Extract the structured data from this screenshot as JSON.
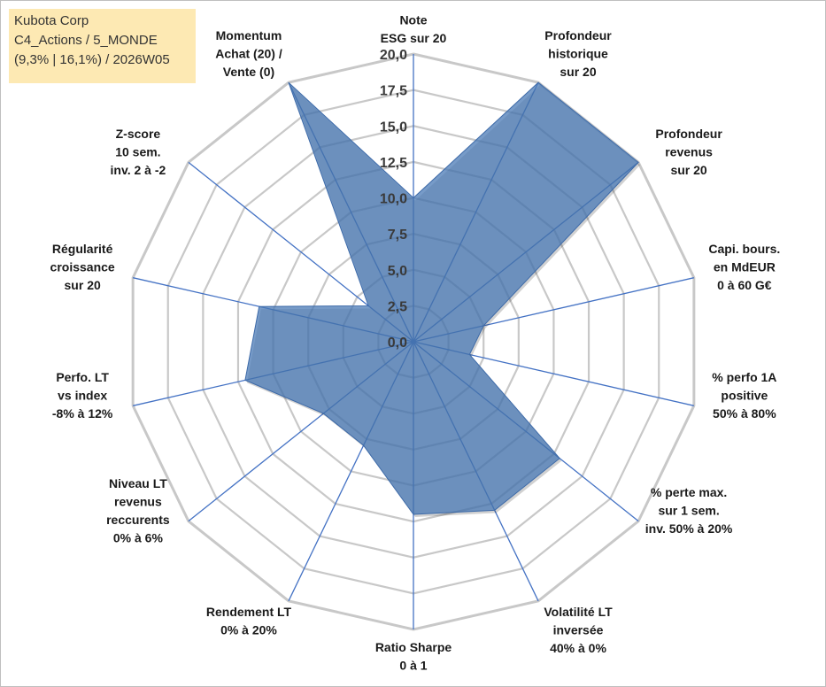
{
  "info": {
    "line1": "Kubota Corp",
    "line2": "C4_Actions / 5_MONDE",
    "line3": "(9,3% | 16,1%) / 2026W05"
  },
  "colors": {
    "fill": "#4a7ab5",
    "fill_opacity": "0.75",
    "axis_line": "#4472c4",
    "grid": "#c8c8c8",
    "info_bg": "#fde9b3"
  },
  "chart_data": {
    "type": "radar",
    "title": "",
    "range": [
      0,
      20
    ],
    "tick_step": 2.5,
    "tick_labels": [
      "0,0",
      "2,5",
      "5,0",
      "7,5",
      "10,0",
      "12,5",
      "15,0",
      "17,5",
      "20,0"
    ],
    "axes": [
      {
        "label": [
          "Note",
          "ESG sur 20"
        ],
        "value": 10
      },
      {
        "label": [
          "Profondeur",
          "historique",
          "sur 20"
        ],
        "value": 20
      },
      {
        "label": [
          "Profondeur",
          "revenus",
          "sur 20"
        ],
        "value": 20
      },
      {
        "label": [
          "Capi. bours.",
          "en MdEUR",
          "0 à 60 G€"
        ],
        "value": 5
      },
      {
        "label": [
          "% perfo 1A",
          "positive",
          "50% à 80%"
        ],
        "value": 4
      },
      {
        "label": [
          "% perte max.",
          "sur 1 sem.",
          "inv. 50% à 20%"
        ],
        "value": 13
      },
      {
        "label": [
          "Volatilité LT",
          "inversée",
          "40% à 0%"
        ],
        "value": 13
      },
      {
        "label": [
          "Ratio Sharpe",
          "0 à 1"
        ],
        "value": 12
      },
      {
        "label": [
          "Rendement LT",
          "0% à 20%"
        ],
        "value": 8
      },
      {
        "label": [
          "Niveau LT",
          "revenus",
          "reccurents",
          "0% à 6%"
        ],
        "value": 8
      },
      {
        "label": [
          "Perfo. LT",
          "vs index",
          "-8% à 12%"
        ],
        "value": 12
      },
      {
        "label": [
          "Régularité",
          "croissance",
          "sur 20"
        ],
        "value": 11
      },
      {
        "label": [
          "Z-score",
          "10 sem.",
          "inv. 2 à -2"
        ],
        "value": 4
      },
      {
        "label": [
          "Momentum",
          "Achat (20) /",
          "Vente (0)"
        ],
        "value": 20
      }
    ]
  }
}
